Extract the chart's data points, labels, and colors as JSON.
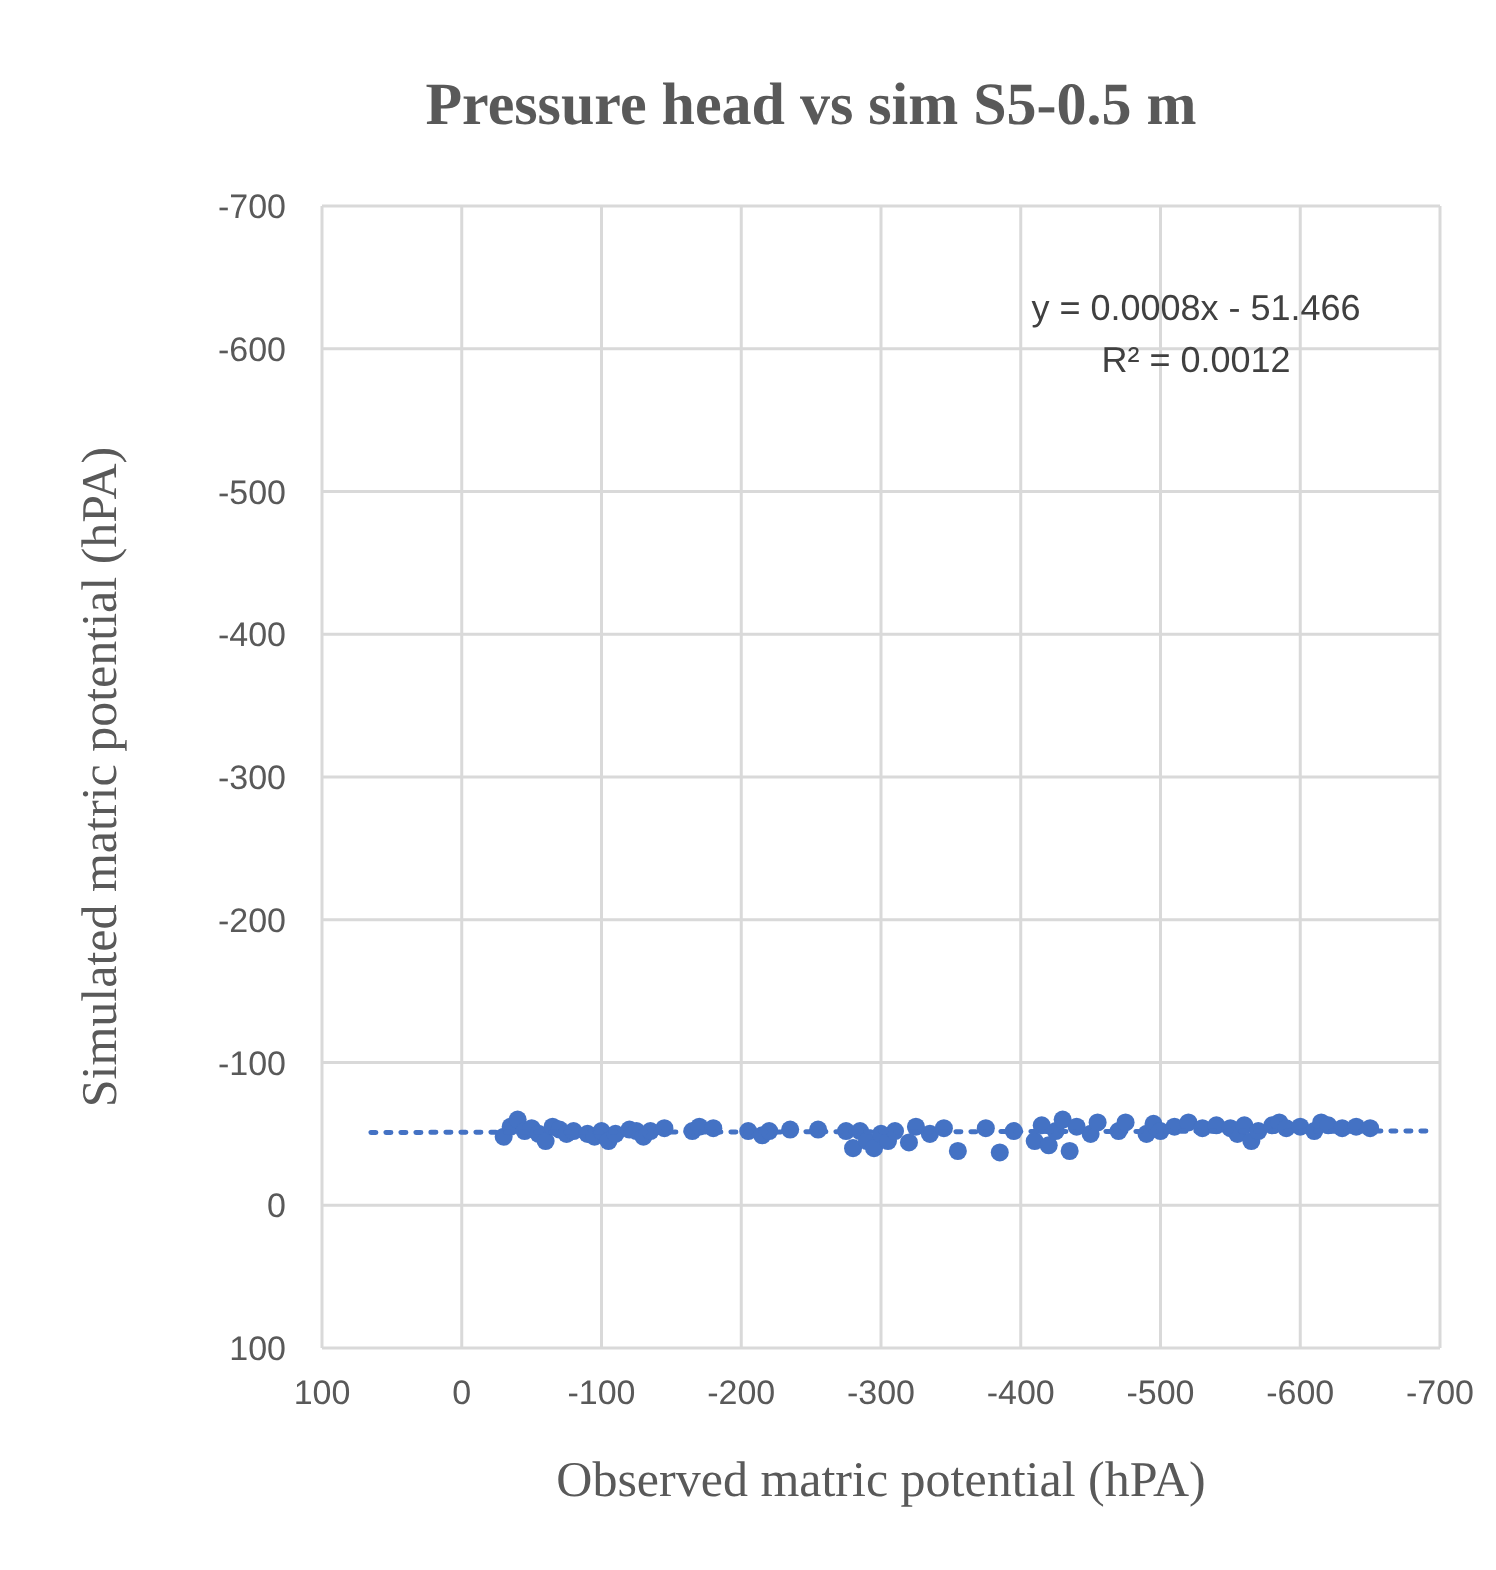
{
  "chart_data": {
    "type": "scatter",
    "title": "Pressure head vs sim S5-0.5 m",
    "xlabel": "Observed matric potential (hPA)",
    "ylabel": "Simulated  matric potential (hPA)",
    "xlim": [
      100,
      -700
    ],
    "xticks": [
      100,
      0,
      -100,
      -200,
      -300,
      -400,
      -500,
      -600,
      -700
    ],
    "ylim": [
      100,
      -700
    ],
    "yticks": [
      100,
      0,
      -100,
      -200,
      -300,
      -400,
      -500,
      -600,
      -700
    ],
    "grid": true,
    "annotations": [
      "y = 0.0008x - 51.466",
      "R² = 0.0012"
    ],
    "series": [
      {
        "color": "#4472c4",
        "marker": "circle",
        "x": [
          -30,
          -35,
          -40,
          -45,
          -50,
          -55,
          -60,
          -65,
          -70,
          -75,
          -80,
          -90,
          -95,
          -100,
          -105,
          -110,
          -120,
          -125,
          -130,
          -135,
          -145,
          -165,
          -170,
          -180,
          -205,
          -215,
          -220,
          -235,
          -255,
          -275,
          -280,
          -285,
          -290,
          -295,
          -300,
          -305,
          -310,
          -320,
          -325,
          -335,
          -345,
          -355,
          -375,
          -385,
          -395,
          -410,
          -415,
          -420,
          -425,
          -430,
          -435,
          -440,
          -450,
          -455,
          -470,
          -475,
          -490,
          -495,
          -500,
          -510,
          -520,
          -530,
          -540,
          -550,
          -555,
          -560,
          -565,
          -570,
          -580,
          -585,
          -590,
          -600,
          -610,
          -615,
          -620,
          -630,
          -640,
          -650
        ],
        "values": [
          -48,
          -55,
          -60,
          -52,
          -54,
          -50,
          -45,
          -55,
          -53,
          -50,
          -52,
          -50,
          -48,
          -52,
          -45,
          -50,
          -53,
          -52,
          -48,
          -52,
          -54,
          -52,
          -55,
          -54,
          -52,
          -49,
          -52,
          -53,
          -53,
          -52,
          -40,
          -52,
          -45,
          -40,
          -50,
          -45,
          -52,
          -44,
          -55,
          -50,
          -54,
          -38,
          -54,
          -37,
          -52,
          -45,
          -56,
          -42,
          -52,
          -60,
          -38,
          -55,
          -50,
          -58,
          -52,
          -58,
          -50,
          -57,
          -52,
          -55,
          -58,
          -54,
          -56,
          -54,
          -50,
          -56,
          -45,
          -52,
          -56,
          -58,
          -54,
          -55,
          -52,
          -58,
          -56,
          -54,
          -55,
          -54
        ]
      },
      {
        "type": "line",
        "color": "#4472c4",
        "line_style": "dotted",
        "x": [
          65,
          -695
        ],
        "values": [
          -51,
          -52
        ]
      }
    ]
  }
}
